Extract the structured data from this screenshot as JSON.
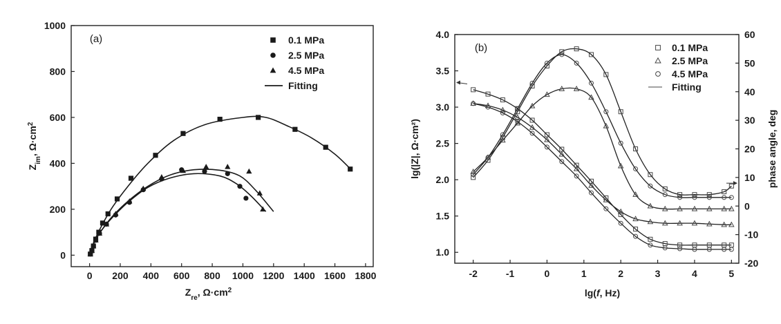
{
  "chart_data": [
    {
      "type": "scatter",
      "panel": "(a)",
      "xlabel_main": "Z",
      "xlabel_sub": "re",
      "xlabel_units": ", Ω·cm",
      "xlabel_sup": "2",
      "ylabel_main": "Z",
      "ylabel_sub": "im",
      "ylabel_units": ", Ω·cm",
      "ylabel_sup": "2",
      "xlim": [
        -120,
        1850
      ],
      "ylim": [
        -50,
        1000
      ],
      "xticks": [
        0,
        200,
        400,
        600,
        800,
        1000,
        1200,
        1400,
        1600,
        1800
      ],
      "yticks": [
        0,
        200,
        400,
        600,
        800,
        1000
      ],
      "legend": [
        {
          "label": "0.1 MPa",
          "marker": "square"
        },
        {
          "label": "2.5 MPa",
          "marker": "circle"
        },
        {
          "label": "4.5 MPa",
          "marker": "triangle"
        },
        {
          "label": "Fitting",
          "marker": "line"
        }
      ],
      "series": [
        {
          "name": "0.1 MPa",
          "marker": "square",
          "points": [
            [
              5,
              5
            ],
            [
              15,
              20
            ],
            [
              25,
              40
            ],
            [
              40,
              70
            ],
            [
              60,
              100
            ],
            [
              85,
              140
            ],
            [
              120,
              180
            ],
            [
              180,
              245
            ],
            [
              270,
              335
            ],
            [
              430,
              435
            ],
            [
              610,
              530
            ],
            [
              850,
              592
            ],
            [
              1100,
              600
            ],
            [
              1340,
              548
            ],
            [
              1540,
              470
            ],
            [
              1700,
              375
            ]
          ],
          "fit": [
            [
              0,
              0
            ],
            [
              30,
              60
            ],
            [
              80,
              130
            ],
            [
              150,
              210
            ],
            [
              250,
              300
            ],
            [
              380,
              400
            ],
            [
              550,
              500
            ],
            [
              750,
              568
            ],
            [
              1000,
              600
            ],
            [
              1150,
              600
            ],
            [
              1300,
              560
            ],
            [
              1450,
              510
            ],
            [
              1600,
              440
            ],
            [
              1710,
              370
            ]
          ]
        },
        {
          "name": "2.5 MPa",
          "marker": "circle",
          "points": [
            [
              5,
              5
            ],
            [
              15,
              20
            ],
            [
              25,
              40
            ],
            [
              40,
              65
            ],
            [
              65,
              95
            ],
            [
              110,
              135
            ],
            [
              170,
              175
            ],
            [
              260,
              230
            ],
            [
              350,
              285
            ],
            [
              470,
              332
            ],
            [
              600,
              372
            ],
            [
              750,
              365
            ],
            [
              900,
              355
            ],
            [
              980,
              300
            ],
            [
              1020,
              248
            ]
          ],
          "fit": [
            [
              0,
              0
            ],
            [
              30,
              55
            ],
            [
              80,
              110
            ],
            [
              150,
              165
            ],
            [
              250,
              230
            ],
            [
              380,
              295
            ],
            [
              520,
              335
            ],
            [
              680,
              355
            ],
            [
              850,
              345
            ],
            [
              960,
              310
            ],
            [
              1050,
              260
            ],
            [
              1150,
              190
            ]
          ]
        },
        {
          "name": "4.5 MPa",
          "marker": "triangle",
          "points": [
            [
              5,
              5
            ],
            [
              15,
              20
            ],
            [
              25,
              40
            ],
            [
              40,
              65
            ],
            [
              65,
              95
            ],
            [
              110,
              135
            ],
            [
              170,
              180
            ],
            [
              260,
              235
            ],
            [
              350,
              290
            ],
            [
              470,
              340
            ],
            [
              610,
              368
            ],
            [
              760,
              385
            ],
            [
              900,
              385
            ],
            [
              1040,
              365
            ],
            [
              1110,
              270
            ],
            [
              1130,
              200
            ]
          ],
          "fit": [
            [
              0,
              0
            ],
            [
              30,
              55
            ],
            [
              80,
              110
            ],
            [
              150,
              170
            ],
            [
              250,
              235
            ],
            [
              380,
              300
            ],
            [
              520,
              348
            ],
            [
              680,
              372
            ],
            [
              850,
              370
            ],
            [
              980,
              345
            ],
            [
              1080,
              285
            ],
            [
              1200,
              190
            ]
          ]
        }
      ]
    },
    {
      "type": "line",
      "panel": "(b)",
      "xlabel_pre": "lg(",
      "xlabel_italic": "f",
      "xlabel_post": ", Hz)",
      "ylabel_left": "lg(|Z|, Ω·cm²)",
      "ylabel_right": "phase angle, deg",
      "xlim": [
        -2.5,
        5.2
      ],
      "ylim_left": [
        0.85,
        4.0
      ],
      "ylim_right": [
        -20,
        60
      ],
      "xticks": [
        -2,
        -1,
        0,
        1,
        2,
        3,
        4,
        5
      ],
      "yticks_left": [
        "1.0",
        "1.5",
        "2.0",
        "2.5",
        "3.0",
        "3.5",
        "4.0"
      ],
      "yticks_right": [
        -20,
        -10,
        0,
        10,
        20,
        30,
        40,
        50,
        60
      ],
      "legend": [
        {
          "label": "0.1 MPa",
          "marker": "square-open"
        },
        {
          "label": "2.5 MPa",
          "marker": "triangle-open"
        },
        {
          "label": "4.5 MPa",
          "marker": "circle-open"
        },
        {
          "label": "Fitting",
          "marker": "line-thin"
        }
      ],
      "magnitude_series": [
        {
          "name": "0.1 MPa",
          "marker": "square-open",
          "x": [
            -2.0,
            -1.6,
            -1.2,
            -0.8,
            -0.4,
            0.0,
            0.4,
            0.8,
            1.2,
            1.6,
            2.0,
            2.4,
            2.8,
            3.2,
            3.6,
            4.0,
            4.4,
            4.8,
            5.0
          ],
          "y": [
            3.24,
            3.18,
            3.1,
            2.98,
            2.82,
            2.62,
            2.42,
            2.2,
            1.98,
            1.75,
            1.52,
            1.32,
            1.18,
            1.12,
            1.1,
            1.1,
            1.1,
            1.1,
            1.1
          ]
        },
        {
          "name": "2.5 MPa",
          "marker": "triangle-open",
          "x": [
            -2.0,
            -1.6,
            -1.2,
            -0.8,
            -0.4,
            0.0,
            0.4,
            0.8,
            1.2,
            1.6,
            2.0,
            2.4,
            2.8,
            3.2,
            3.6,
            4.0,
            4.4,
            4.8,
            5.0
          ],
          "y": [
            3.05,
            3.02,
            2.96,
            2.86,
            2.72,
            2.55,
            2.35,
            2.15,
            1.92,
            1.72,
            1.56,
            1.46,
            1.42,
            1.4,
            1.4,
            1.4,
            1.39,
            1.38,
            1.38
          ]
        },
        {
          "name": "4.5 MPa",
          "marker": "circle-open",
          "x": [
            -2.0,
            -1.6,
            -1.2,
            -0.8,
            -0.4,
            0.0,
            0.4,
            0.8,
            1.2,
            1.6,
            2.0,
            2.4,
            2.8,
            3.2,
            3.6,
            4.0,
            4.4,
            4.8,
            5.0
          ],
          "y": [
            3.05,
            3.0,
            2.92,
            2.8,
            2.64,
            2.45,
            2.25,
            2.05,
            1.82,
            1.6,
            1.4,
            1.22,
            1.1,
            1.06,
            1.05,
            1.04,
            1.04,
            1.04,
            1.04
          ]
        }
      ],
      "phase_series": [
        {
          "name": "0.1 MPa",
          "marker": "square-open",
          "x": [
            -2.0,
            -1.6,
            -1.2,
            -0.8,
            -0.4,
            0.0,
            0.4,
            0.8,
            1.2,
            1.6,
            2.0,
            2.4,
            2.8,
            3.2,
            3.6,
            4.0,
            4.4,
            4.8,
            5.0
          ],
          "y": [
            10,
            16,
            24,
            33,
            42,
            49,
            54,
            55,
            53,
            46,
            33,
            20,
            11,
            6,
            4,
            4,
            4,
            5,
            7
          ]
        },
        {
          "name": "2.5 MPa",
          "marker": "triangle-open",
          "x": [
            -2.0,
            -1.6,
            -1.2,
            -0.8,
            -0.4,
            0.0,
            0.4,
            0.8,
            1.2,
            1.6,
            2.0,
            2.4,
            2.8,
            3.2,
            3.6,
            4.0,
            4.4,
            4.8,
            5.0
          ],
          "y": [
            12,
            17,
            23,
            29,
            35,
            39,
            41,
            41,
            38,
            28,
            14,
            4,
            0,
            -1,
            -1,
            -1,
            -1,
            -1,
            -1
          ]
        },
        {
          "name": "4.5 MPa",
          "marker": "circle-open",
          "x": [
            -2.0,
            -1.6,
            -1.2,
            -0.8,
            -0.4,
            0.0,
            0.4,
            0.8,
            1.2,
            1.6,
            2.0,
            2.4,
            2.8,
            3.2,
            3.6,
            4.0,
            4.4,
            4.8,
            5.0
          ],
          "y": [
            11,
            17,
            25,
            34,
            43,
            50,
            53,
            50,
            43,
            33,
            22,
            13,
            7,
            4,
            3,
            3,
            3,
            3,
            3
          ]
        }
      ]
    }
  ]
}
